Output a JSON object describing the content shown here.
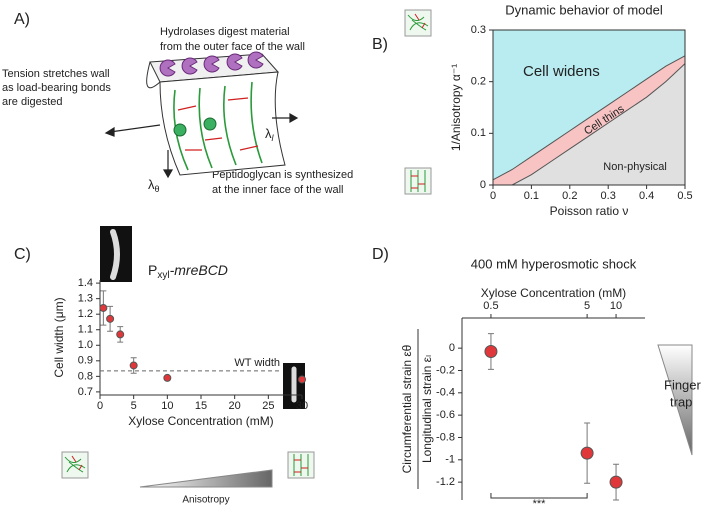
{
  "diagram": {
    "panel_label": "A)",
    "hydrolase_text": [
      "Hydrolases digest material",
      "from the outer face of the wall"
    ],
    "tension_text": [
      "Tension stretches wall",
      "as load-bearing bonds",
      "are digested"
    ],
    "synthesis_text": [
      "Peptidoglycan is synthesized",
      "at the inner face of the wall"
    ],
    "lambda_l": "λ",
    "lambda_l_sub": "l",
    "lambda_theta": "λ",
    "lambda_theta_sub": "θ"
  },
  "chart_data": [
    {
      "type": "area",
      "panel_label": "B)",
      "title": "Dynamic behavior of model",
      "xlabel": "Poisson ratio  ν",
      "ylabel": "1/Anisotropy  α⁻¹",
      "x": [
        0,
        0.05,
        0.1,
        0.15,
        0.2,
        0.25,
        0.3,
        0.35,
        0.4,
        0.45,
        0.5
      ],
      "series": [
        {
          "color": "#555555",
          "values": [
            0.01,
            0.03,
            0.055,
            0.08,
            0.105,
            0.13,
            0.155,
            0.18,
            0.205,
            0.23,
            0.25
          ]
        },
        {
          "color": "#555555",
          "values": [
            0,
            0,
            0.02,
            0.045,
            0.07,
            0.095,
            0.12,
            0.145,
            0.17,
            0.2,
            0.235
          ]
        }
      ],
      "region_labels": [
        "Cell widens",
        "Cell thins",
        "Non-physical"
      ],
      "region_colors": [
        "#b8ecf0",
        "#f7c3c3",
        "#e0e0e0"
      ],
      "region_label_colors": [
        "#3a6fc4",
        "#d0157a",
        "#222222"
      ],
      "xlim": [
        0,
        0.5
      ],
      "ylim": [
        0,
        0.3
      ],
      "xticks": [
        0,
        0.1,
        0.2,
        0.3,
        0.4,
        0.5
      ],
      "yticks": [
        0,
        0.1,
        0.2,
        0.3
      ]
    },
    {
      "type": "scatter",
      "panel_label": "C)",
      "label_parts": [
        "P",
        "xyl",
        "-mreBCD"
      ],
      "xlabel": "Xylose Concentration (mM)",
      "ylabel": "Cell width (μm)",
      "x": [
        0.5,
        1.5,
        3,
        5,
        10,
        30
      ],
      "series": [
        {
          "color": "#e0383a",
          "values": [
            1.24,
            1.17,
            1.07,
            0.87,
            0.79,
            0.78
          ],
          "errors": [
            0.11,
            0.08,
            0.05,
            0.05,
            null,
            null
          ]
        }
      ],
      "reference_line": {
        "value": 0.835,
        "label": "WT width"
      },
      "bottom_label": "Anisotropy",
      "xlim": [
        0,
        30
      ],
      "ylim": [
        0.68,
        1.42
      ],
      "xticks": [
        0,
        5,
        10,
        15,
        20,
        25,
        30
      ],
      "yticks": [
        0.7,
        0.8,
        0.9,
        {
          "value": 1,
          "label": "1.0"
        },
        1.1,
        1.2,
        1.3,
        1.4
      ]
    },
    {
      "type": "scatter",
      "panel_label": "D)",
      "title": "400 mM hyperosmotic shock",
      "xlabel": "Xylose Concentration (mM)",
      "ylabel": [
        "Circumferential strain εθ",
        "Longitudinal strain εₗ"
      ],
      "x": [
        0.5,
        5,
        10
      ],
      "log_x": true,
      "x_axis_position": "top",
      "series": [
        {
          "color": "#e0383a",
          "values": [
            -0.03,
            -0.94,
            -1.2
          ],
          "errors": [
            0.16,
            0.27,
            0.16
          ]
        }
      ],
      "significance": "***",
      "side_label": [
        "Finger",
        "trap"
      ],
      "xlim": [
        0.25,
        20
      ],
      "ylim": [
        -1.36,
        0.27
      ],
      "xticks": [
        0.5,
        5,
        10
      ],
      "yticks": [
        0,
        -0.2,
        -0.4,
        -0.6,
        -0.8,
        -1,
        -1.2
      ]
    }
  ]
}
